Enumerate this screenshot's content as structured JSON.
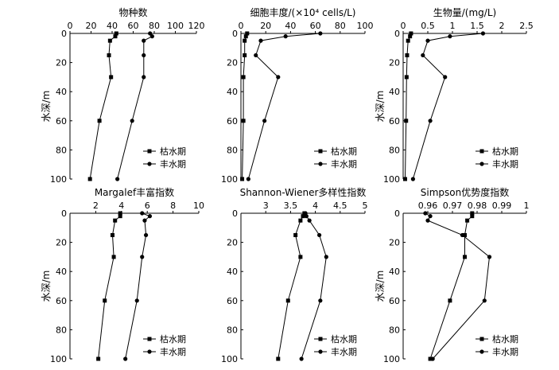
{
  "chart_data": [
    {
      "type": "line",
      "title": "物种数",
      "ylabel": "水深/m",
      "xlim": [
        0,
        120
      ],
      "ylim": [
        0,
        100
      ],
      "xticks": [
        0,
        20,
        40,
        60,
        80,
        100,
        120
      ],
      "yticks": [
        0,
        20,
        40,
        60,
        80,
        100
      ],
      "series": [
        {
          "name": "枯水期",
          "marker": "square",
          "x": [
            44,
            43,
            38,
            37,
            39,
            28,
            19
          ],
          "y": [
            0,
            2,
            5,
            15,
            30,
            60,
            100
          ]
        },
        {
          "name": "丰水期",
          "marker": "circle",
          "x": [
            76,
            78,
            70,
            70,
            70,
            59,
            45
          ],
          "y": [
            0,
            2,
            5,
            15,
            30,
            60,
            100
          ]
        }
      ]
    },
    {
      "type": "line",
      "title": "细胞丰度/(×10⁴ cells/L)",
      "ylabel": "",
      "xlim": [
        0,
        100
      ],
      "ylim": [
        0,
        100
      ],
      "xticks": [
        0,
        20,
        40,
        60,
        80,
        100
      ],
      "yticks": [
        0,
        20,
        40,
        60,
        80,
        100
      ],
      "series": [
        {
          "name": "枯水期",
          "marker": "square",
          "x": [
            5,
            4,
            3,
            3,
            2,
            2,
            1
          ],
          "y": [
            0,
            2,
            5,
            15,
            30,
            60,
            100
          ]
        },
        {
          "name": "丰水期",
          "marker": "circle",
          "x": [
            64,
            36,
            16,
            12,
            30,
            19,
            6
          ],
          "y": [
            0,
            2,
            5,
            15,
            30,
            60,
            100
          ]
        }
      ]
    },
    {
      "type": "line",
      "title": "生物量/(mg/L)",
      "ylabel": "水深/m",
      "xlim": [
        0,
        2.5
      ],
      "ylim": [
        0,
        100
      ],
      "xticks": [
        0,
        0.5,
        1.0,
        1.5,
        2.0,
        2.5
      ],
      "yticks": [
        0,
        20,
        40,
        60,
        80,
        100
      ],
      "series": [
        {
          "name": "枯水期",
          "marker": "square",
          "x": [
            0.16,
            0.14,
            0.1,
            0.08,
            0.07,
            0.06,
            0.04
          ],
          "y": [
            0,
            2,
            5,
            15,
            30,
            60,
            100
          ]
        },
        {
          "name": "丰水期",
          "marker": "circle",
          "x": [
            1.62,
            0.95,
            0.5,
            0.4,
            0.85,
            0.55,
            0.2
          ],
          "y": [
            0,
            2,
            5,
            15,
            30,
            60,
            100
          ]
        }
      ]
    },
    {
      "type": "line",
      "title": "Margalef丰富指数",
      "ylabel": "水深/m",
      "xlim": [
        0,
        10
      ],
      "ylim": [
        0,
        100
      ],
      "xticks": [
        2,
        4,
        6,
        8,
        10
      ],
      "yticks": [
        0,
        20,
        40,
        60,
        80,
        100
      ],
      "series": [
        {
          "name": "枯水期",
          "marker": "square",
          "x": [
            3.9,
            3.9,
            3.5,
            3.3,
            3.4,
            2.7,
            2.2
          ],
          "y": [
            0,
            2,
            5,
            15,
            30,
            60,
            100
          ]
        },
        {
          "name": "丰水期",
          "marker": "circle",
          "x": [
            5.6,
            6.2,
            5.8,
            5.9,
            5.6,
            5.2,
            4.3
          ],
          "y": [
            0,
            2,
            5,
            15,
            30,
            60,
            100
          ]
        }
      ]
    },
    {
      "type": "line",
      "title": "Shannon-Wiener多样性指数",
      "ylabel": "",
      "xlim": [
        2.5,
        5.0
      ],
      "ylim": [
        0,
        100
      ],
      "xticks": [
        3.0,
        3.5,
        4.0,
        4.5,
        5.0
      ],
      "yticks": [
        0,
        20,
        40,
        60,
        80,
        100
      ],
      "series": [
        {
          "name": "枯水期",
          "marker": "square",
          "x": [
            3.78,
            3.75,
            3.7,
            3.6,
            3.7,
            3.45,
            3.25
          ],
          "y": [
            0,
            2,
            5,
            15,
            30,
            60,
            100
          ]
        },
        {
          "name": "丰水期",
          "marker": "circle",
          "x": [
            3.8,
            3.82,
            3.88,
            4.08,
            4.22,
            4.1,
            3.72
          ],
          "y": [
            0,
            2,
            5,
            15,
            30,
            60,
            100
          ]
        }
      ]
    },
    {
      "type": "line",
      "title": "Simpson优势度指数",
      "ylabel": "水深/m",
      "xlim": [
        0.95,
        1.0
      ],
      "ylim": [
        0,
        100
      ],
      "xticks": [
        0.96,
        0.97,
        0.98,
        0.99,
        1.0
      ],
      "yticks": [
        0,
        20,
        40,
        60,
        80,
        100
      ],
      "series": [
        {
          "name": "枯水期",
          "marker": "square",
          "x": [
            0.978,
            0.978,
            0.976,
            0.975,
            0.975,
            0.969,
            0.961
          ],
          "y": [
            0,
            2,
            5,
            15,
            30,
            60,
            100
          ]
        },
        {
          "name": "丰水期",
          "marker": "circle",
          "x": [
            0.959,
            0.961,
            0.96,
            0.974,
            0.985,
            0.983,
            0.962
          ],
          "y": [
            0,
            2,
            5,
            15,
            30,
            60,
            100
          ]
        }
      ]
    }
  ]
}
